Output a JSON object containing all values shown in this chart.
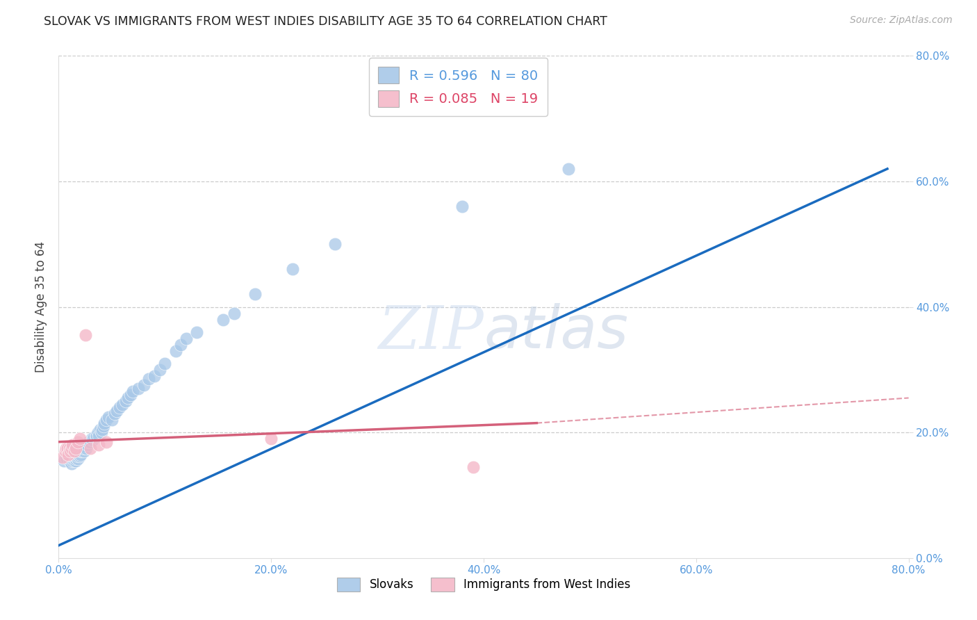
{
  "title": "SLOVAK VS IMMIGRANTS FROM WEST INDIES DISABILITY AGE 35 TO 64 CORRELATION CHART",
  "source": "Source: ZipAtlas.com",
  "ylabel": "Disability Age 35 to 64",
  "xlim": [
    0.0,
    0.8
  ],
  "ylim": [
    0.0,
    0.8
  ],
  "xticks": [
    0.0,
    0.2,
    0.4,
    0.6,
    0.8
  ],
  "yticks": [
    0.0,
    0.2,
    0.4,
    0.6,
    0.8
  ],
  "xtick_labels": [
    "0.0%",
    "20.0%",
    "40.0%",
    "60.0%",
    "80.0%"
  ],
  "ytick_labels": [
    "0.0%",
    "20.0%",
    "40.0%",
    "60.0%",
    "80.0%"
  ],
  "background_color": "#ffffff",
  "grid_color": "#cccccc",
  "watermark": "ZIPatlas",
  "blue_color": "#a8c8e8",
  "pink_color": "#f4b8c8",
  "blue_line_color": "#1a6bbf",
  "pink_line_color": "#d4607a",
  "blue_R": 0.596,
  "blue_N": 80,
  "pink_R": 0.085,
  "pink_N": 19,
  "blue_line_x0": 0.0,
  "blue_line_y0": 0.02,
  "blue_line_x1": 0.78,
  "blue_line_y1": 0.62,
  "pink_line_x0": 0.0,
  "pink_line_y0": 0.185,
  "pink_line_x1_solid": 0.45,
  "pink_line_y1_solid": 0.215,
  "pink_line_x1_dash": 0.8,
  "pink_line_y1_dash": 0.255,
  "slovaks_x": [
    0.005,
    0.007,
    0.008,
    0.008,
    0.009,
    0.009,
    0.01,
    0.01,
    0.01,
    0.01,
    0.012,
    0.013,
    0.013,
    0.014,
    0.014,
    0.015,
    0.015,
    0.016,
    0.016,
    0.016,
    0.017,
    0.017,
    0.018,
    0.018,
    0.019,
    0.019,
    0.02,
    0.02,
    0.021,
    0.021,
    0.022,
    0.023,
    0.023,
    0.024,
    0.024,
    0.025,
    0.026,
    0.027,
    0.028,
    0.03,
    0.031,
    0.032,
    0.033,
    0.035,
    0.036,
    0.037,
    0.038,
    0.039,
    0.04,
    0.041,
    0.042,
    0.043,
    0.045,
    0.047,
    0.05,
    0.053,
    0.055,
    0.057,
    0.06,
    0.063,
    0.065,
    0.068,
    0.07,
    0.075,
    0.08,
    0.085,
    0.09,
    0.095,
    0.1,
    0.11,
    0.115,
    0.12,
    0.13,
    0.155,
    0.165,
    0.185,
    0.22,
    0.26,
    0.38,
    0.48
  ],
  "slovaks_y": [
    0.155,
    0.16,
    0.165,
    0.168,
    0.17,
    0.172,
    0.155,
    0.158,
    0.162,
    0.165,
    0.15,
    0.155,
    0.158,
    0.16,
    0.165,
    0.155,
    0.16,
    0.155,
    0.158,
    0.162,
    0.16,
    0.162,
    0.158,
    0.162,
    0.165,
    0.17,
    0.162,
    0.168,
    0.165,
    0.17,
    0.17,
    0.172,
    0.175,
    0.17,
    0.175,
    0.178,
    0.175,
    0.18,
    0.185,
    0.185,
    0.19,
    0.188,
    0.192,
    0.195,
    0.195,
    0.2,
    0.195,
    0.205,
    0.2,
    0.205,
    0.21,
    0.215,
    0.22,
    0.225,
    0.22,
    0.23,
    0.235,
    0.24,
    0.245,
    0.25,
    0.255,
    0.26,
    0.265,
    0.27,
    0.275,
    0.285,
    0.29,
    0.3,
    0.31,
    0.33,
    0.34,
    0.35,
    0.36,
    0.38,
    0.39,
    0.42,
    0.46,
    0.5,
    0.56,
    0.62
  ],
  "westindies_x": [
    0.004,
    0.006,
    0.007,
    0.008,
    0.009,
    0.01,
    0.011,
    0.012,
    0.013,
    0.015,
    0.016,
    0.018,
    0.02,
    0.025,
    0.03,
    0.038,
    0.045,
    0.2,
    0.39
  ],
  "westindies_y": [
    0.16,
    0.17,
    0.175,
    0.175,
    0.165,
    0.175,
    0.17,
    0.175,
    0.18,
    0.17,
    0.175,
    0.185,
    0.19,
    0.355,
    0.175,
    0.18,
    0.185,
    0.19,
    0.145
  ]
}
